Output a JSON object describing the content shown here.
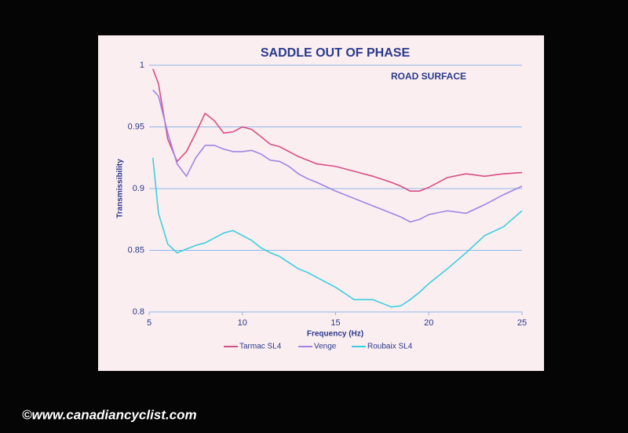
{
  "chart_data": {
    "type": "line",
    "title": "SADDLE OUT OF PHASE",
    "annotation": "ROAD SURFACE",
    "x_label": "Frequency (Hz)",
    "y_label": "Transmissibility",
    "x": [
      5.2,
      5.5,
      6,
      6.5,
      7,
      7.5,
      8,
      8.5,
      9,
      9.5,
      10,
      10.5,
      11,
      11.5,
      12,
      12.5,
      13,
      13.5,
      14,
      15,
      16,
      17,
      18,
      18.5,
      19,
      19.5,
      20,
      21,
      22,
      23,
      24,
      25
    ],
    "series": [
      {
        "name": "Tarmac SL4",
        "color": "#d64f86",
        "values": [
          0.997,
          0.985,
          0.94,
          0.922,
          0.93,
          0.945,
          0.961,
          0.955,
          0.945,
          0.946,
          0.95,
          0.948,
          0.942,
          0.936,
          0.934,
          0.93,
          0.926,
          0.923,
          0.92,
          0.918,
          0.914,
          0.91,
          0.905,
          0.902,
          0.898,
          0.898,
          0.901,
          0.909,
          0.912,
          0.91,
          0.912,
          0.913
        ]
      },
      {
        "name": "Venge",
        "color": "#9f84e6",
        "values": [
          0.98,
          0.975,
          0.945,
          0.92,
          0.91,
          0.925,
          0.935,
          0.935,
          0.932,
          0.93,
          0.93,
          0.931,
          0.928,
          0.923,
          0.922,
          0.918,
          0.912,
          0.908,
          0.905,
          0.898,
          0.892,
          0.886,
          0.88,
          0.877,
          0.873,
          0.875,
          0.879,
          0.882,
          0.88,
          0.887,
          0.895,
          0.902
        ]
      },
      {
        "name": "Roubaix SL4",
        "color": "#3ccfe0",
        "values": [
          0.925,
          0.88,
          0.855,
          0.848,
          0.851,
          0.854,
          0.856,
          0.86,
          0.864,
          0.866,
          0.862,
          0.858,
          0.852,
          0.848,
          0.845,
          0.84,
          0.835,
          0.832,
          0.828,
          0.82,
          0.81,
          0.81,
          0.804,
          0.805,
          0.81,
          0.816,
          0.823,
          0.835,
          0.848,
          0.862,
          0.869,
          0.882
        ]
      }
    ],
    "xlim": [
      5,
      25
    ],
    "xticks": [
      5,
      10,
      15,
      20,
      25
    ],
    "ylim": [
      0.8,
      1
    ],
    "yticks": [
      0.8,
      0.85,
      0.9,
      0.95,
      1
    ],
    "grid": true,
    "legend": "bottom"
  },
  "watermark": "©www.canadiancyclist.com"
}
